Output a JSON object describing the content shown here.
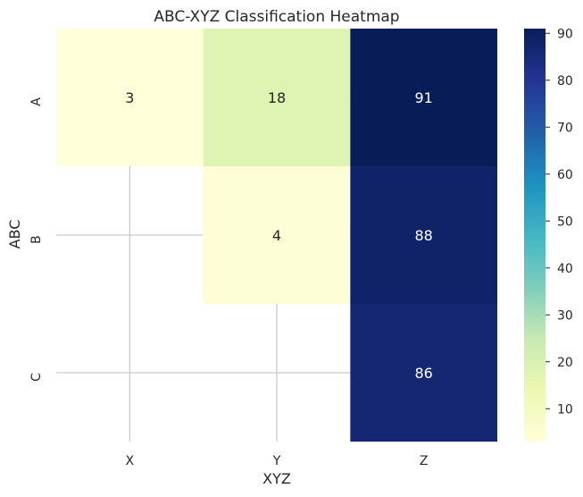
{
  "chart_data": {
    "type": "heatmap",
    "title": "ABC-XYZ Classification Heatmap",
    "xlabel": "XYZ",
    "ylabel": "ABC",
    "x_categories": [
      "X",
      "Y",
      "Z"
    ],
    "y_categories": [
      "A",
      "B",
      "C"
    ],
    "values": [
      [
        3,
        18,
        91
      ],
      [
        null,
        4,
        88
      ],
      [
        null,
        null,
        86
      ]
    ],
    "colorbar": {
      "min": 3,
      "max": 91,
      "ticks": [
        10,
        20,
        30,
        40,
        50,
        60,
        70,
        80,
        90
      ],
      "colormap": "YlGnBu"
    },
    "grid": true,
    "missing_cells_shown_blank": true
  }
}
